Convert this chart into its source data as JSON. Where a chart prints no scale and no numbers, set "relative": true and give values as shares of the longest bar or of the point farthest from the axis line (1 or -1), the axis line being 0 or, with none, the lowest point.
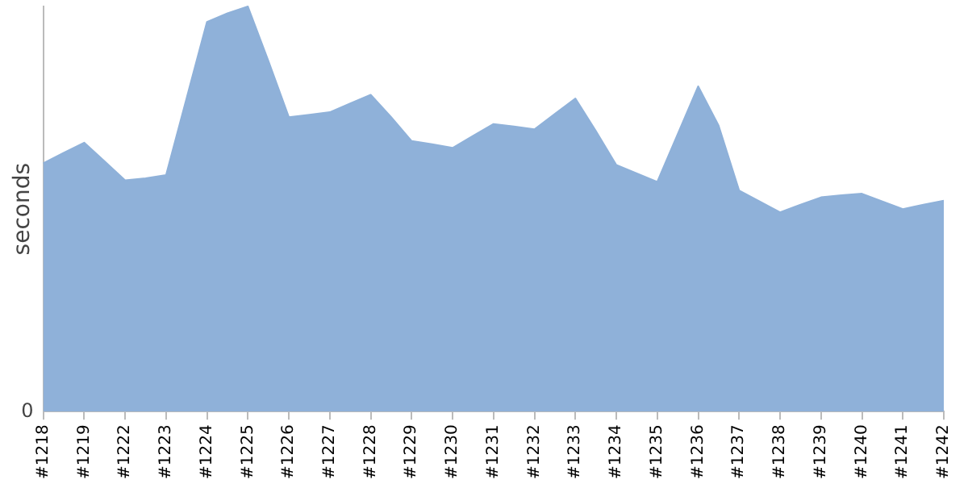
{
  "chart_data": {
    "type": "area",
    "ylabel": "seconds",
    "relative": true,
    "color": "#8fb1d9",
    "grid": false,
    "legend": false,
    "annotations": [
      "0"
    ],
    "categories": [
      "#1218",
      null,
      "#1219",
      null,
      "#1222",
      null,
      "#1223",
      null,
      "#1224",
      null,
      "#1225",
      null,
      "#1226",
      null,
      "#1227",
      null,
      "#1228",
      null,
      "#1229",
      null,
      "#1230",
      null,
      "#1231",
      null,
      "#1232",
      null,
      "#1233",
      null,
      "#1234",
      null,
      "#1235",
      null,
      "#1236",
      null,
      "#1237",
      null,
      "#1238",
      null,
      "#1239",
      null,
      "#1240",
      null,
      "#1241",
      null,
      "#1242"
    ],
    "values": [
      0.613,
      0.639,
      0.664,
      0.618,
      0.571,
      0.576,
      0.584,
      0.773,
      0.962,
      0.983,
      1,
      0.866,
      0.727,
      0.733,
      0.739,
      0.761,
      0.782,
      0.727,
      0.668,
      0.66,
      0.651,
      0.681,
      0.71,
      0.704,
      0.697,
      0.735,
      0.773,
      0.693,
      0.609,
      0.588,
      0.567,
      0.685,
      0.803,
      0.706,
      0.546,
      0.519,
      0.492,
      0.511,
      0.529,
      0.534,
      0.538,
      0.519,
      0.5,
      0.511,
      0.521
    ]
  }
}
